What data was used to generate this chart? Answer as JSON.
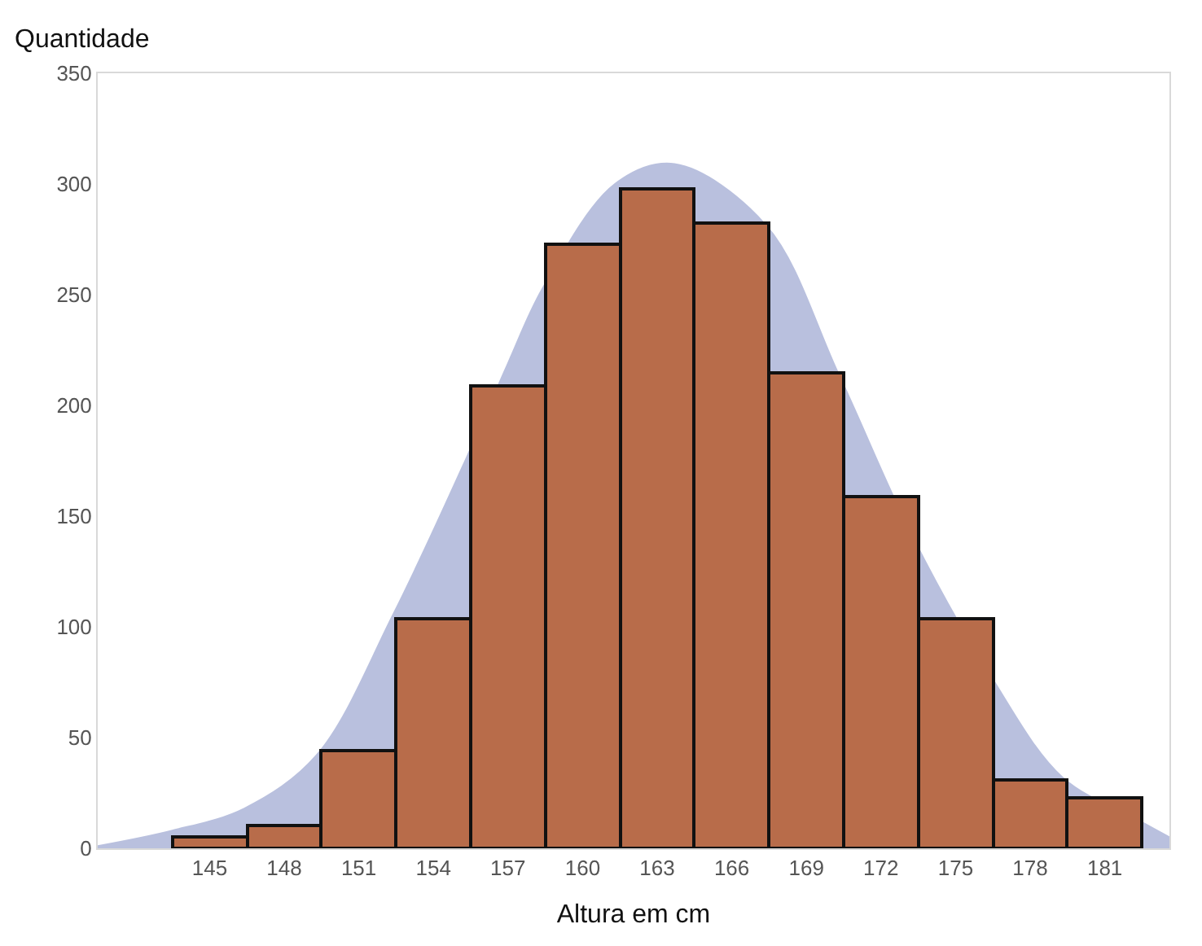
{
  "chart_data": {
    "type": "bar",
    "xlabel": "Altura em cm",
    "ylabel": "Quantidade",
    "xlim": [
      140.5,
      183.6
    ],
    "xticks": [
      145,
      148,
      151,
      154,
      157,
      160,
      163,
      166,
      169,
      172,
      175,
      178,
      181
    ],
    "ylim": [
      0,
      350
    ],
    "yticks": [
      0,
      50,
      100,
      150,
      200,
      250,
      300,
      350
    ],
    "series": [
      {
        "type": "area",
        "color": "#b9c0de",
        "x": [
          140.5,
          143.5,
          146.4,
          149.3,
          152.4,
          155.4,
          157,
          158.4,
          161.3,
          163.7,
          167.4,
          170.3,
          173.3,
          176.4,
          179.3,
          182.3,
          183.6
        ],
        "values": [
          1,
          8,
          18,
          42,
          106,
          178,
          219,
          253,
          300,
          309,
          281,
          214,
          140,
          78,
          32,
          13,
          5
        ]
      },
      {
        "color": "#b86c4a",
        "x": [
          145,
          148,
          151,
          154,
          157,
          160,
          163,
          166,
          169,
          172,
          175,
          178,
          181
        ],
        "values": [
          5,
          10,
          44,
          104,
          209,
          273,
          298,
          282,
          215,
          159,
          104,
          31,
          23
        ]
      }
    ]
  }
}
